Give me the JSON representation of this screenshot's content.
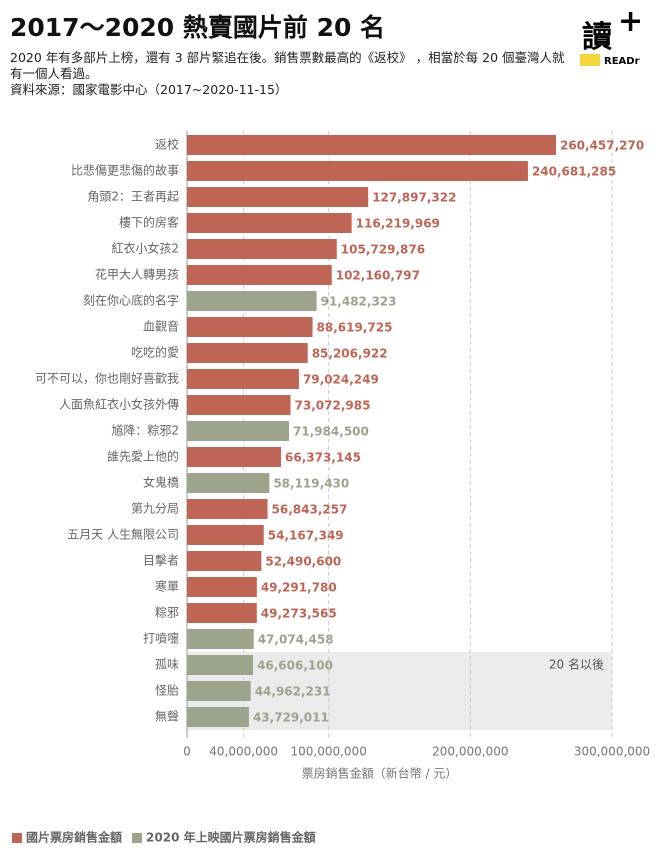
{
  "header": {
    "title": "2017～2020 熱賣國片前 20 名",
    "subtitle": "2020 年有多部片上榜，還有 3 部片緊追在後。銷售票數最高的《返校》 ，相當於每 20 個臺灣人就有一個人看過。",
    "source": "資料來源：國家電影中心（2017~2020-11-15）",
    "logo": "讀",
    "logo_plus": "+",
    "logo_brand": "READr"
  },
  "chart_data": {
    "type": "bar",
    "orientation": "horizontal",
    "categories": [
      "返校",
      "比悲傷更悲傷的故事",
      "角頭2：王者再起",
      "樓下的房客",
      "紅衣小女孩2",
      "花甲大人轉男孩",
      "刻在你心底的名字",
      "血觀音",
      "吃吃的愛",
      "可不可以，你也剛好喜歡我",
      "人面魚紅衣小女孩外傳",
      "馗降：粽邪2",
      "誰先愛上他的",
      "女鬼橋",
      "第九分局",
      "五月天 人生無限公司",
      "目擊者",
      "寒單",
      "粽邪",
      "打噴嚏",
      "孤味",
      "怪胎",
      "無聲"
    ],
    "series": [
      {
        "name": "國片票房銷售金額",
        "color": "#bf6556",
        "values": [
          260457270,
          240681285,
          127897322,
          116219969,
          105729876,
          102160797,
          null,
          88619725,
          85206922,
          79024249,
          73072985,
          null,
          66373145,
          null,
          56843257,
          54167349,
          52490600,
          49291780,
          49273565,
          null,
          null,
          null,
          null
        ],
        "value_labels": [
          "260,457,270",
          "240,681,285",
          "127,897,322",
          "116,219,969",
          "105,729,876",
          "102,160,797",
          null,
          "88,619,725",
          "85,206,922",
          "79,024,249",
          "73,072,985",
          null,
          "66,373,145",
          null,
          "56,843,257",
          "54,167,349",
          "52,490,600",
          "49,291,780",
          "49,273,565",
          null,
          null,
          null,
          null
        ]
      },
      {
        "name": "2020 年上映國片票房銷售金額",
        "color": "#9ca58b",
        "values": [
          null,
          null,
          null,
          null,
          null,
          null,
          91482323,
          null,
          null,
          null,
          null,
          71984500,
          null,
          58119430,
          null,
          null,
          null,
          null,
          null,
          47074458,
          46606100,
          44962231,
          43729011
        ],
        "value_labels": [
          null,
          null,
          null,
          null,
          null,
          null,
          "91,482,323",
          null,
          null,
          null,
          null,
          "71,984,500",
          null,
          "58,119,430",
          null,
          null,
          null,
          null,
          null,
          "47,074,458",
          "46,606,100",
          "44,962,231",
          "43,729,011"
        ]
      }
    ],
    "xlim": [
      0,
      300000000
    ],
    "xticks": [
      0,
      {
        "value": 40000000,
        "label": "40,000,000"
      },
      {
        "value": 100000000,
        "label": "100,000,000"
      },
      {
        "value": 200000000,
        "label": "200,000,000"
      },
      {
        "value": 300000000,
        "label": "300,000,000"
      }
    ],
    "xlabel": "票房銷售金額（新台幣 / 元）",
    "grid": true,
    "annotation": "20 名以後",
    "legend": "bottom-left"
  }
}
